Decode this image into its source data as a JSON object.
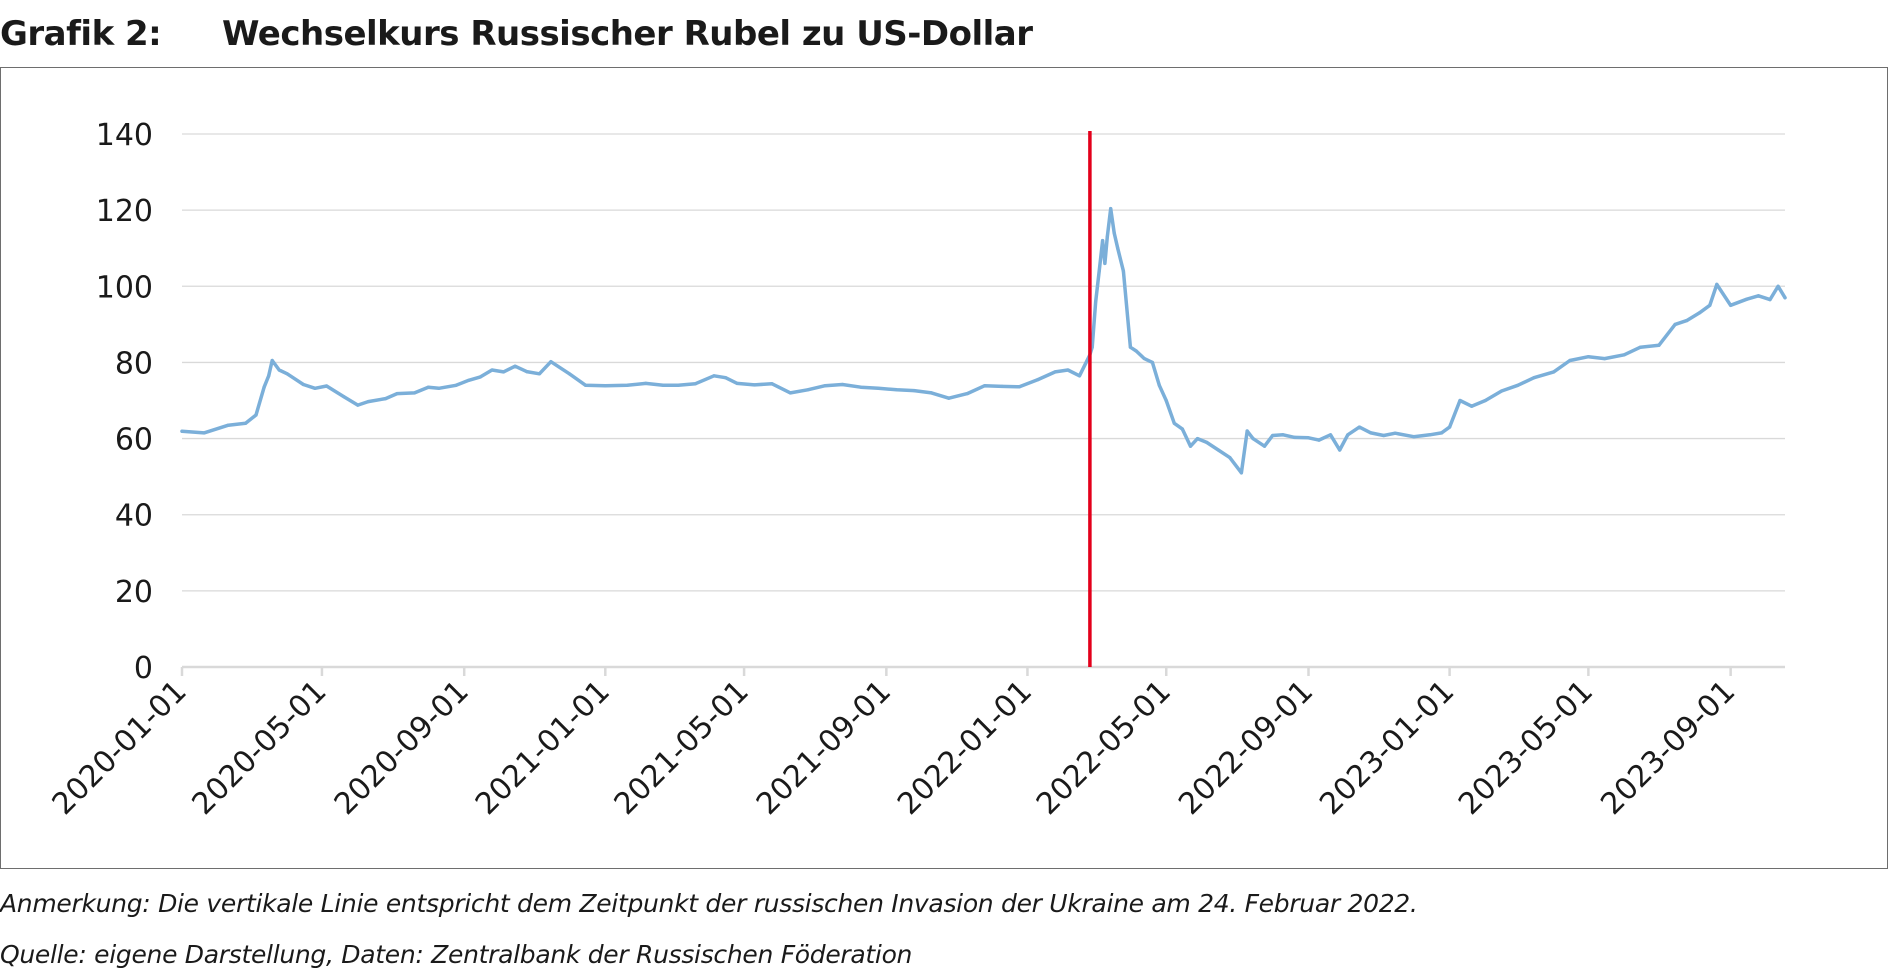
{
  "header": {
    "label": "Grafik 2:",
    "title": "Wechselkurs Russischer Rubel zu US-Dollar"
  },
  "footer": {
    "note": "Anmerkung: Die vertikale Linie entspricht dem Zeitpunkt der russischen Invasion der Ukraine am 24. Februar 2022.",
    "source": "Quelle: eigene Darstellung, Daten: Zentralbank der Russischen Föderation"
  },
  "colors": {
    "series": "#7bafd9",
    "marker": "#e3001b",
    "grid": "#d9d9d9",
    "axis": "#d9d9d9",
    "text": "#1a1a1a"
  },
  "chart_data": {
    "type": "line",
    "title": "",
    "xlabel": "",
    "ylabel": "",
    "ylim": [
      0,
      140
    ],
    "yticks": [
      0,
      20,
      40,
      60,
      80,
      100,
      120,
      140
    ],
    "grid": true,
    "legend": "none",
    "x_start": "2020-01-01",
    "x_end": "2023-10-18",
    "xtick_labels": [
      "2020-01-01",
      "2020-05-01",
      "2020-09-01",
      "2021-01-01",
      "2021-05-01",
      "2021-09-01",
      "2022-01-01",
      "2022-05-01",
      "2022-09-01",
      "2023-01-01",
      "2023-05-01",
      "2023-09-01"
    ],
    "vertical_line": {
      "x": "2022-02-24",
      "label": "Invasion der Ukraine"
    },
    "series": [
      {
        "x": [
          "2020-01-01",
          "2020-01-20",
          "2020-02-10",
          "2020-02-25",
          "2020-03-05",
          "2020-03-12",
          "2020-03-16",
          "2020-03-19",
          "2020-03-25",
          "2020-04-01",
          "2020-04-15",
          "2020-04-25",
          "2020-05-05",
          "2020-05-20",
          "2020-06-01",
          "2020-06-10",
          "2020-06-25",
          "2020-07-05",
          "2020-07-20",
          "2020-08-01",
          "2020-08-10",
          "2020-08-25",
          "2020-09-05",
          "2020-09-15",
          "2020-09-25",
          "2020-10-05",
          "2020-10-15",
          "2020-10-25",
          "2020-11-05",
          "2020-11-15",
          "2020-12-01",
          "2020-12-15",
          "2021-01-01",
          "2021-01-20",
          "2021-02-05",
          "2021-02-20",
          "2021-03-05",
          "2021-03-20",
          "2021-04-05",
          "2021-04-15",
          "2021-04-25",
          "2021-05-10",
          "2021-05-25",
          "2021-06-10",
          "2021-06-25",
          "2021-07-10",
          "2021-07-25",
          "2021-08-10",
          "2021-08-25",
          "2021-09-10",
          "2021-09-25",
          "2021-10-10",
          "2021-10-25",
          "2021-11-10",
          "2021-11-25",
          "2021-12-10",
          "2021-12-25",
          "2022-01-10",
          "2022-01-25",
          "2022-02-05",
          "2022-02-15",
          "2022-02-24",
          "2022-02-26",
          "2022-03-01",
          "2022-03-04",
          "2022-03-07",
          "2022-03-09",
          "2022-03-11",
          "2022-03-14",
          "2022-03-17",
          "2022-03-20",
          "2022-03-25",
          "2022-03-31",
          "2022-04-05",
          "2022-04-12",
          "2022-04-19",
          "2022-04-25",
          "2022-05-01",
          "2022-05-08",
          "2022-05-15",
          "2022-05-22",
          "2022-05-28",
          "2022-06-05",
          "2022-06-15",
          "2022-06-25",
          "2022-07-05",
          "2022-07-10",
          "2022-07-15",
          "2022-07-25",
          "2022-08-01",
          "2022-08-10",
          "2022-08-20",
          "2022-09-01",
          "2022-09-10",
          "2022-09-20",
          "2022-09-28",
          "2022-10-05",
          "2022-10-15",
          "2022-10-25",
          "2022-11-05",
          "2022-11-15",
          "2022-12-01",
          "2022-12-15",
          "2022-12-25",
          "2023-01-01",
          "2023-01-10",
          "2023-01-20",
          "2023-02-01",
          "2023-02-15",
          "2023-03-01",
          "2023-03-15",
          "2023-04-01",
          "2023-04-15",
          "2023-05-01",
          "2023-05-15",
          "2023-06-01",
          "2023-06-15",
          "2023-07-01",
          "2023-07-15",
          "2023-07-25",
          "2023-08-05",
          "2023-08-14",
          "2023-08-20",
          "2023-09-01",
          "2023-09-15",
          "2023-09-25",
          "2023-10-05",
          "2023-10-12",
          "2023-10-18"
        ],
        "values": [
          61.9,
          61.5,
          63.5,
          64.0,
          66.2,
          73.5,
          76.5,
          80.5,
          78.0,
          77.0,
          74.2,
          73.2,
          73.8,
          71.0,
          68.8,
          69.7,
          70.5,
          71.8,
          72.0,
          73.5,
          73.2,
          74.0,
          75.3,
          76.2,
          78.0,
          77.5,
          79.0,
          77.6,
          77.0,
          80.2,
          77.0,
          74.0,
          73.9,
          74.0,
          74.5,
          74.0,
          74.0,
          74.4,
          76.5,
          76.0,
          74.5,
          74.1,
          74.4,
          72.0,
          72.8,
          73.9,
          74.2,
          73.5,
          73.2,
          72.8,
          72.6,
          72.0,
          70.6,
          71.8,
          73.9,
          73.7,
          73.6,
          75.5,
          77.5,
          78.0,
          76.5,
          82.0,
          84.0,
          96.0,
          104.0,
          112.0,
          106.0,
          113.0,
          120.4,
          114.0,
          110.0,
          104.0,
          84.0,
          83.0,
          81.0,
          80.0,
          74.0,
          70.0,
          64.0,
          62.5,
          58.0,
          60.0,
          59.0,
          57.0,
          55.0,
          51.0,
          62.0,
          60.0,
          58.0,
          60.8,
          61.0,
          60.3,
          60.2,
          59.6,
          61.0,
          57.0,
          61.0,
          63.0,
          61.5,
          60.8,
          61.4,
          60.5,
          61.0,
          61.5,
          63.0,
          70.0,
          68.5,
          70.0,
          72.5,
          74.0,
          76.0,
          77.5,
          80.5,
          81.5,
          81.0,
          82.0,
          84.0,
          84.5,
          90.0,
          91.0,
          93.0,
          95.0,
          100.5,
          95.0,
          96.6,
          97.5,
          96.5,
          100.0,
          97.0
        ]
      }
    ]
  }
}
